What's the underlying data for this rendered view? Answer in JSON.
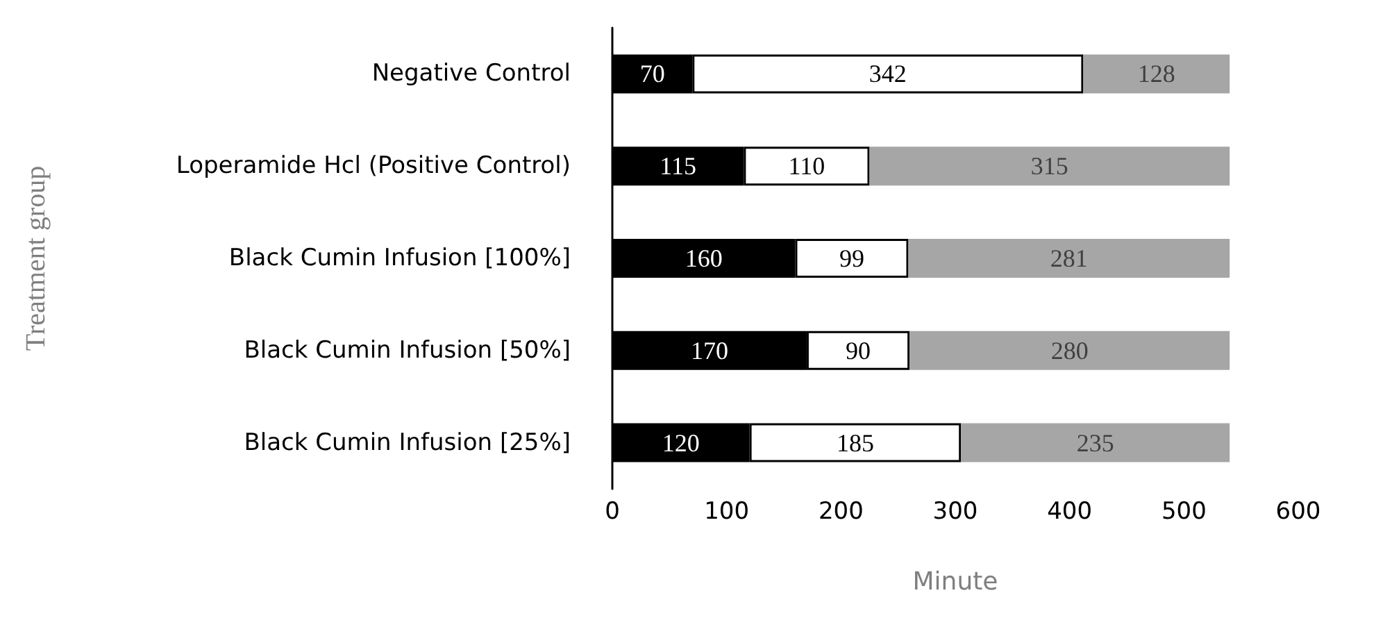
{
  "chart_data": {
    "type": "bar",
    "orientation": "horizontal",
    "stacked": true,
    "data_labels": true,
    "grid": false,
    "xlabel": "Minute",
    "ylabel": "Treatment group",
    "categories": [
      "Negative Control",
      "Loperamide Hcl (Positive Control)",
      "Black Cumin Infusion [100%]",
      "Black Cumin Infusion [50%]",
      "Black Cumin Infusion [25%]"
    ],
    "series": [
      {
        "color": "#000000",
        "values": [
          70,
          115,
          160,
          170,
          120
        ]
      },
      {
        "color": "#ffffff",
        "values": [
          342,
          110,
          99,
          90,
          185
        ]
      },
      {
        "color": "#a6a6a6",
        "values": [
          128,
          315,
          281,
          280,
          235
        ]
      }
    ],
    "xlim": [
      0,
      600
    ],
    "xticks": [
      0,
      100,
      200,
      300,
      400,
      500,
      600
    ]
  }
}
